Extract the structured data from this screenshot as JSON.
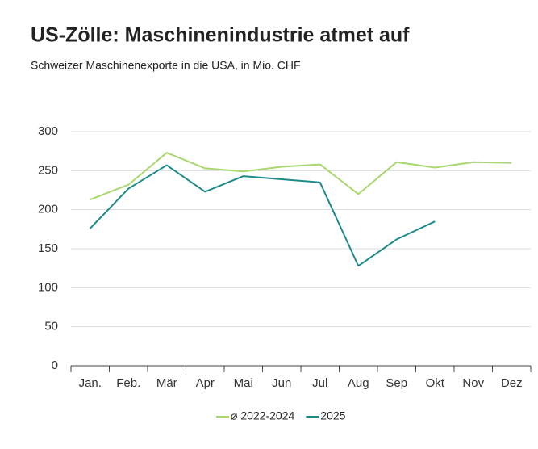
{
  "chart_data": {
    "type": "line",
    "title": "US-Zölle: Maschinenindustrie atmet auf",
    "subtitle": "Schweizer Maschinenexporte in die USA, in Mio. CHF",
    "categories": [
      "Jan.",
      "Feb.",
      "Mär",
      "Apr",
      "Mai",
      "Jun",
      "Jul",
      "Aug",
      "Sep",
      "Okt",
      "Nov",
      "Dez"
    ],
    "series": [
      {
        "name": "⌀ 2022-2024",
        "color": "#a9d86e",
        "values": [
          213,
          232,
          273,
          253,
          249,
          255,
          258,
          220,
          261,
          254,
          261,
          260
        ]
      },
      {
        "name": "2025",
        "color": "#1f8a8a",
        "values": [
          176,
          227,
          257,
          223,
          243,
          239,
          235,
          128,
          162,
          185,
          null,
          null
        ]
      }
    ],
    "ylim": [
      0,
      300
    ],
    "yticks": [
      0,
      50,
      100,
      150,
      200,
      250,
      300
    ],
    "grid": true
  }
}
